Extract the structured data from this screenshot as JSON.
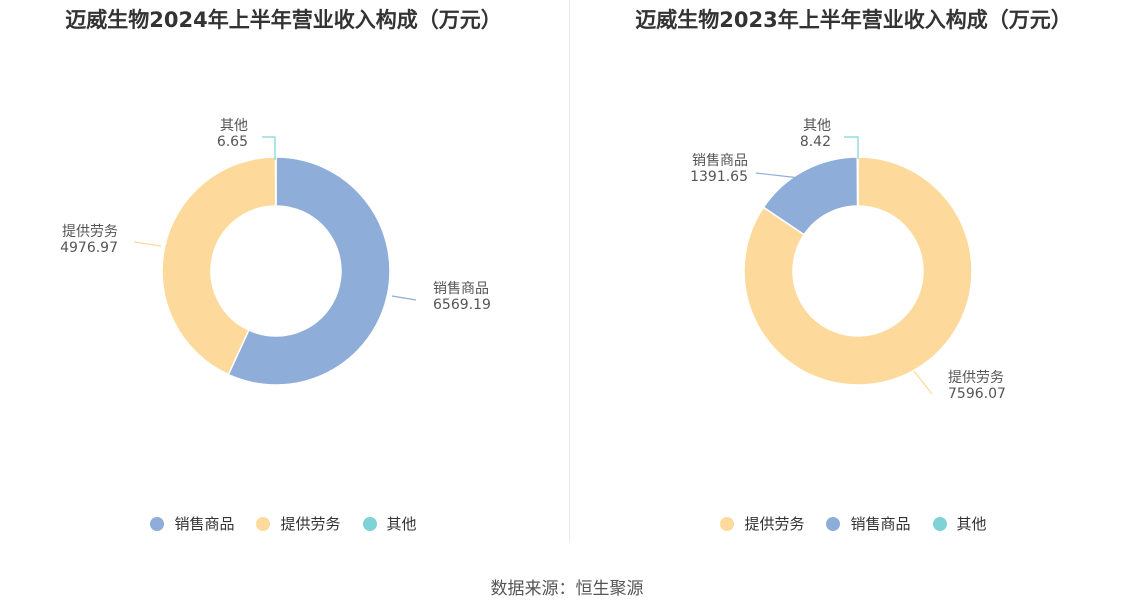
{
  "source": "数据来源：恒生聚源",
  "colors": {
    "sales": "#8eadd9",
    "service": "#fdd99b",
    "other": "#7dd3d6"
  },
  "chart_data": [
    {
      "type": "pie",
      "title": "迈威生物2024年上半年营业收入构成（万元）",
      "slices": [
        {
          "name": "销售商品",
          "value": 6569.19,
          "value_label": "6569.19",
          "color": "#8eadd9"
        },
        {
          "name": "提供劳务",
          "value": 4976.97,
          "value_label": "4976.97",
          "color": "#fdd99b"
        },
        {
          "name": "其他",
          "value": 6.65,
          "value_label": "6.65",
          "color": "#7dd3d6"
        }
      ],
      "legend": [
        "销售商品",
        "提供劳务",
        "其他"
      ],
      "legend_placement": "bottom"
    },
    {
      "type": "pie",
      "title": "迈威生物2023年上半年营业收入构成（万元）",
      "slices": [
        {
          "name": "提供劳务",
          "value": 7596.07,
          "value_label": "7596.07",
          "color": "#fdd99b"
        },
        {
          "name": "销售商品",
          "value": 1391.65,
          "value_label": "1391.65",
          "color": "#8eadd9"
        },
        {
          "name": "其他",
          "value": 8.42,
          "value_label": "8.42",
          "color": "#7dd3d6"
        }
      ],
      "legend": [
        "提供劳务",
        "销售商品",
        "其他"
      ],
      "legend_placement": "bottom"
    }
  ]
}
